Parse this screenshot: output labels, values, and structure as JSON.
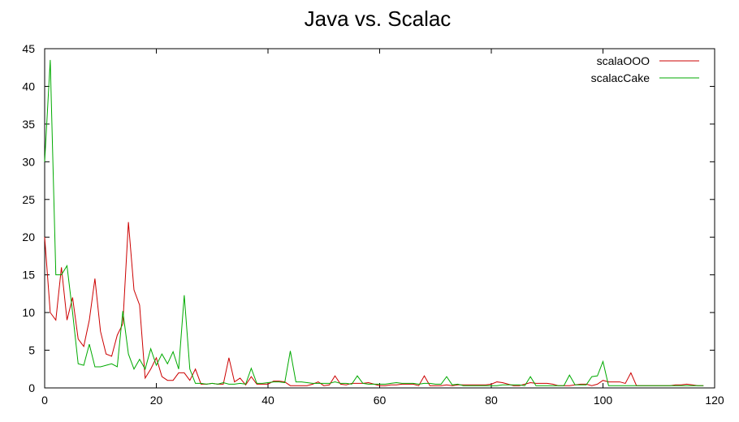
{
  "chart_data": {
    "type": "line",
    "title": "Java vs. Scalac",
    "xlabel": "",
    "ylabel": "",
    "xlim": [
      0,
      120
    ],
    "ylim": [
      0,
      45
    ],
    "xticks": [
      0,
      20,
      40,
      60,
      80,
      100,
      120
    ],
    "yticks": [
      0,
      5,
      10,
      15,
      20,
      25,
      30,
      35,
      40,
      45
    ],
    "xtick_labels": [
      "0",
      "20",
      "40",
      "60",
      "80",
      "100",
      "120"
    ],
    "ytick_labels": [
      "0",
      "5",
      "10",
      "15",
      "20",
      "25",
      "30",
      "35",
      "40",
      "45"
    ],
    "grid": false,
    "legend_position": "top-right",
    "series": [
      {
        "name": "scalaOOO",
        "color": "#cc0000",
        "x": [
          0,
          1,
          2,
          3,
          4,
          5,
          6,
          7,
          8,
          9,
          10,
          11,
          12,
          13,
          14,
          15,
          16,
          17,
          18,
          19,
          20,
          21,
          22,
          23,
          24,
          25,
          26,
          27,
          28,
          29,
          30,
          31,
          32,
          33,
          34,
          35,
          36,
          37,
          38,
          39,
          40,
          41,
          42,
          43,
          44,
          45,
          46,
          47,
          48,
          49,
          50,
          51,
          52,
          53,
          54,
          55,
          56,
          57,
          58,
          59,
          60,
          61,
          62,
          63,
          64,
          65,
          66,
          67,
          68,
          69,
          70,
          71,
          72,
          73,
          74,
          75,
          76,
          77,
          78,
          79,
          80,
          81,
          82,
          83,
          84,
          85,
          86,
          87,
          88,
          89,
          90,
          91,
          92,
          93,
          94,
          95,
          96,
          97,
          98,
          99,
          100,
          101,
          102,
          103,
          104,
          105,
          106,
          107,
          108,
          109,
          110,
          111,
          112,
          113,
          114,
          115,
          116,
          117,
          118
        ],
        "values": [
          20,
          10,
          9,
          16,
          9,
          12,
          6.5,
          5.5,
          9,
          14.5,
          7.5,
          4.5,
          4.2,
          7,
          8.5,
          22,
          13,
          11,
          1.3,
          2.5,
          4,
          1.5,
          1,
          1,
          2,
          2,
          1,
          2.5,
          0.5,
          0.5,
          0.6,
          0.5,
          0.5,
          4,
          0.8,
          1.3,
          0.4,
          1.5,
          0.5,
          0.5,
          0.5,
          0.9,
          0.9,
          0.8,
          0.3,
          0.3,
          0.3,
          0.3,
          0.5,
          0.8,
          0.3,
          0.4,
          1.6,
          0.5,
          0.4,
          0.6,
          0.6,
          0.6,
          0.7,
          0.5,
          0.3,
          0.3,
          0.4,
          0.4,
          0.5,
          0.5,
          0.5,
          0.3,
          1.6,
          0.3,
          0.3,
          0.3,
          0.4,
          0.3,
          0.4,
          0.4,
          0.4,
          0.4,
          0.4,
          0.4,
          0.5,
          0.8,
          0.7,
          0.5,
          0.3,
          0.3,
          0.5,
          0.7,
          0.6,
          0.6,
          0.6,
          0.5,
          0.3,
          0.3,
          0.3,
          0.4,
          0.5,
          0.5,
          0.3,
          0.5,
          1,
          0.8,
          0.8,
          0.8,
          0.6,
          2,
          0.3,
          0.3,
          0.3,
          0.3,
          0.3,
          0.3,
          0.3,
          0.4,
          0.4,
          0.5,
          0.4,
          0.3,
          0.3
        ]
      },
      {
        "name": "scalacCake",
        "color": "#00aa00",
        "x": [
          0,
          1,
          2,
          3,
          4,
          5,
          6,
          7,
          8,
          9,
          10,
          11,
          12,
          13,
          14,
          15,
          16,
          17,
          18,
          19,
          20,
          21,
          22,
          23,
          24,
          25,
          26,
          27,
          28,
          29,
          30,
          31,
          32,
          33,
          34,
          35,
          36,
          37,
          38,
          39,
          40,
          41,
          42,
          43,
          44,
          45,
          46,
          47,
          48,
          49,
          50,
          51,
          52,
          53,
          54,
          55,
          56,
          57,
          58,
          59,
          60,
          61,
          62,
          63,
          64,
          65,
          66,
          67,
          68,
          69,
          70,
          71,
          72,
          73,
          74,
          75,
          76,
          77,
          78,
          79,
          80,
          81,
          82,
          83,
          84,
          85,
          86,
          87,
          88,
          89,
          90,
          91,
          92,
          93,
          94,
          95,
          96,
          97,
          98,
          99,
          100,
          101,
          102,
          103,
          104,
          105,
          106,
          107,
          108,
          109,
          110,
          111,
          112,
          113,
          114,
          115,
          116,
          117,
          118
        ],
        "values": [
          30,
          43.5,
          15,
          15,
          16.2,
          10,
          3.2,
          3,
          5.8,
          2.8,
          2.8,
          3,
          3.2,
          2.8,
          10.2,
          4.5,
          2.5,
          3.8,
          2.5,
          5.2,
          3,
          4.5,
          3.2,
          4.8,
          2.5,
          12.3,
          2.5,
          0.6,
          0.6,
          0.5,
          0.6,
          0.5,
          0.7,
          0.5,
          0.5,
          0.6,
          0.5,
          2.6,
          0.6,
          0.6,
          0.7,
          0.8,
          0.8,
          0.7,
          4.9,
          0.8,
          0.8,
          0.7,
          0.6,
          0.6,
          0.6,
          0.6,
          0.8,
          0.6,
          0.6,
          0.5,
          1.6,
          0.6,
          0.5,
          0.5,
          0.5,
          0.5,
          0.6,
          0.7,
          0.6,
          0.6,
          0.6,
          0.5,
          0.6,
          0.6,
          0.5,
          0.5,
          1.5,
          0.4,
          0.5,
          0.3,
          0.3,
          0.3,
          0.3,
          0.3,
          0.3,
          0.3,
          0.4,
          0.4,
          0.4,
          0.4,
          0.3,
          1.5,
          0.3,
          0.3,
          0.3,
          0.3,
          0.3,
          0.3,
          1.7,
          0.4,
          0.4,
          0.4,
          1.5,
          1.6,
          3.5,
          0.3,
          0.3,
          0.3,
          0.3,
          0.3,
          0.3,
          0.3,
          0.3,
          0.3,
          0.3,
          0.3,
          0.3,
          0.3,
          0.3,
          0.3,
          0.3,
          0.3,
          0.3
        ]
      }
    ]
  }
}
